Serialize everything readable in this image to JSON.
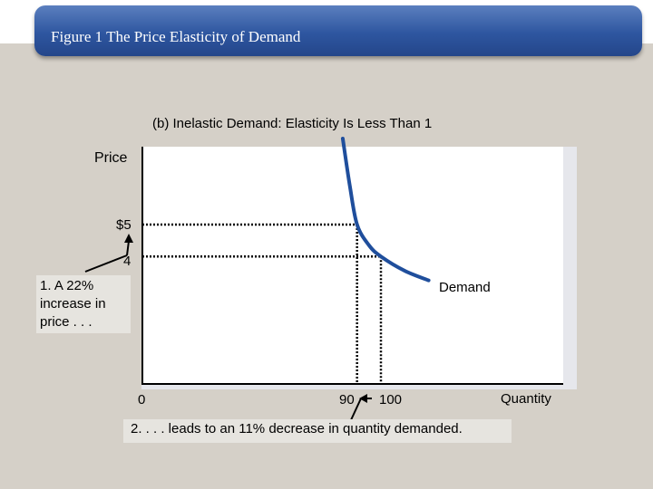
{
  "slide": {
    "title": "Figure 1 The Price Elasticity of Demand"
  },
  "chart_data": {
    "type": "line",
    "title": "(b) Inelastic Demand: Elasticity Is Less Than 1",
    "xlabel": "Quantity",
    "ylabel": "Price",
    "series": [
      {
        "name": "Demand",
        "points": [
          [
            84,
            7.7
          ],
          [
            87,
            6.2
          ],
          [
            90,
            5
          ],
          [
            95,
            4.35
          ],
          [
            100,
            4
          ],
          [
            110,
            3.55
          ],
          [
            120,
            3.25
          ]
        ]
      }
    ],
    "x_ticks": [
      "0",
      "90",
      "100"
    ],
    "y_ticks": [
      "$5",
      "4"
    ],
    "guides": [
      {
        "from_price": 5,
        "to_quantity": 90
      },
      {
        "from_price": 4,
        "to_quantity": 100
      }
    ],
    "annotations": {
      "price_note": "1. A 22% increase in price . . .",
      "quantity_note": "2. . . . leads to an 11% decrease in quantity demanded.",
      "curve_label": "Demand"
    },
    "colors": {
      "curve": "#1f4e9c",
      "title_bar": "#2e56a0"
    }
  }
}
